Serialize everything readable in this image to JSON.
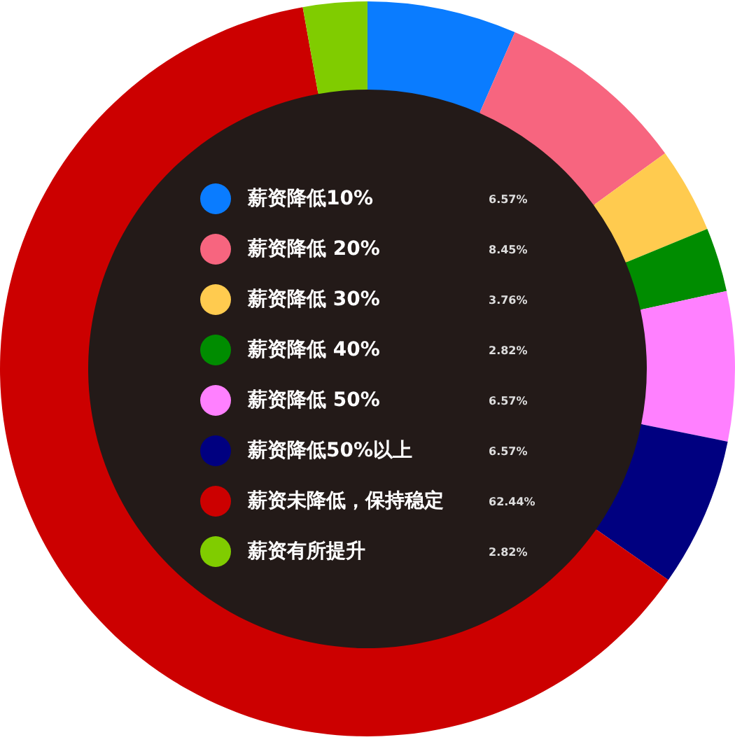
{
  "chart_data": {
    "type": "donut",
    "categories": [
      "薪资降低10%",
      "薪资降低 20%",
      "薪资降低 30%",
      "薪资降低 40%",
      "薪资降低 50%",
      "薪资降低50%以上",
      "薪资未降低，保持稳定",
      "薪资有所提升"
    ],
    "values": [
      6.57,
      8.45,
      3.76,
      2.82,
      6.57,
      6.57,
      62.44,
      2.82
    ],
    "colors": [
      "#0a7cff",
      "#f7657f",
      "#ffcb4f",
      "#008c00",
      "#ff80ff",
      "#000080",
      "#cc0000",
      "#80cc00"
    ],
    "value_labels": [
      "6.57%",
      "8.45%",
      "3.76%",
      "2.82%",
      "6.57%",
      "6.57%",
      "62.44%",
      "2.82%"
    ],
    "legend": "center"
  }
}
